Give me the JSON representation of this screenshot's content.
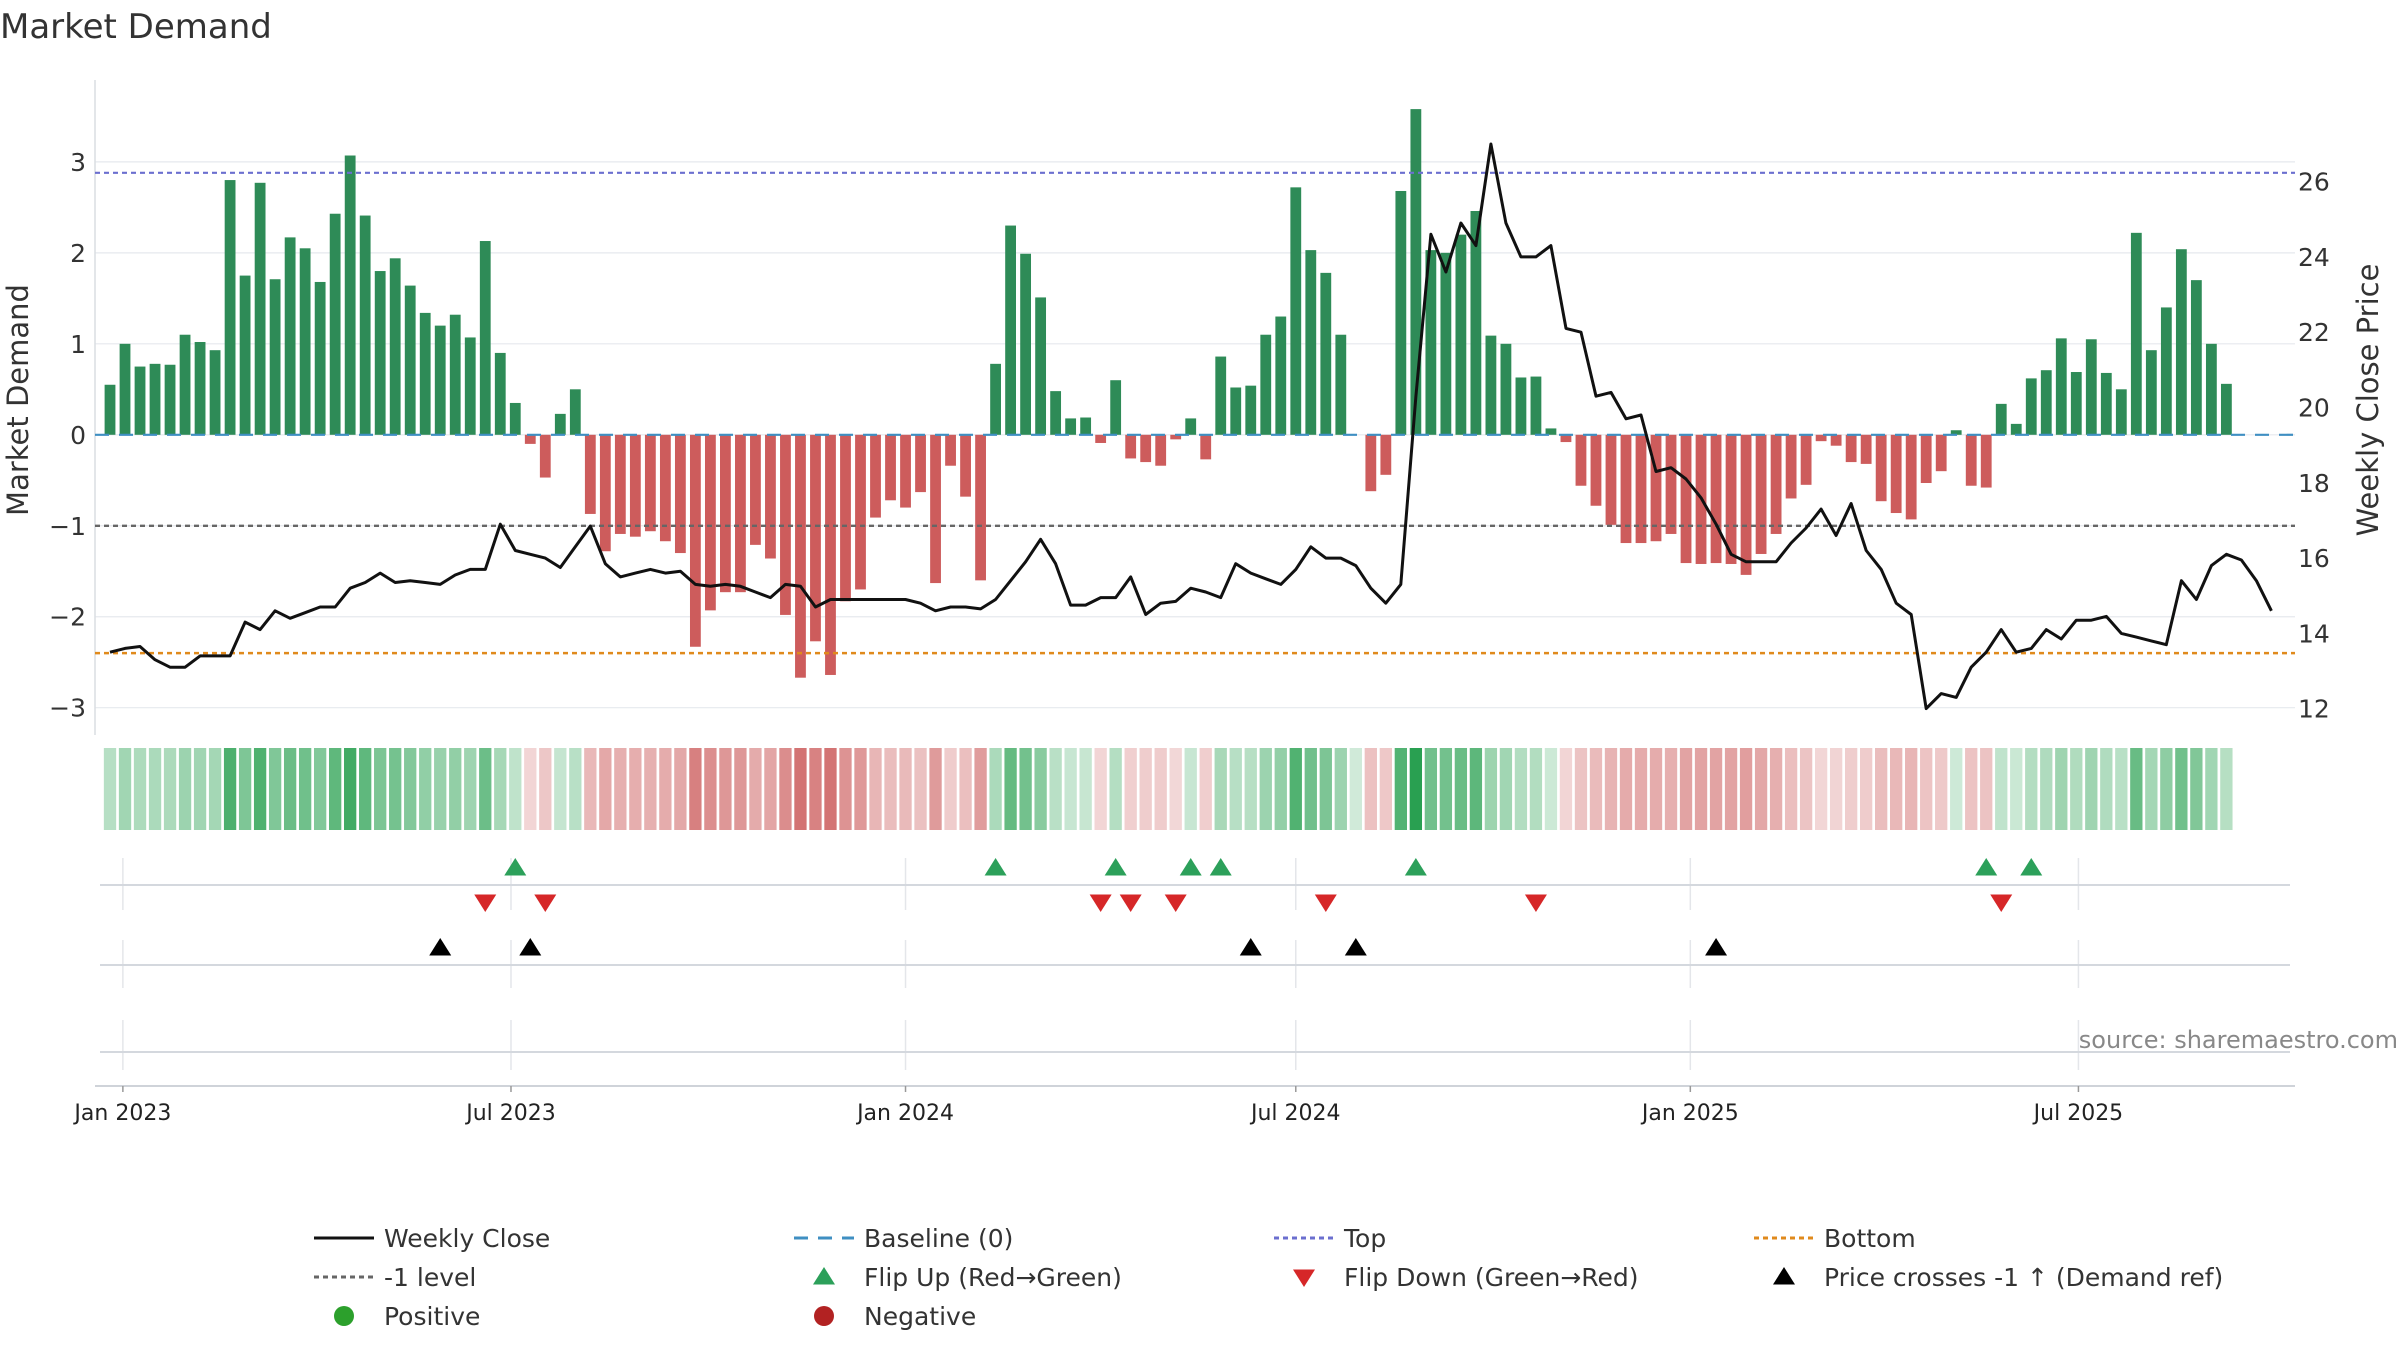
{
  "chart_data": {
    "type": "bar",
    "title": "Market Demand",
    "ylabel": "Market Demand",
    "y2label": "Weekly Close Price",
    "ylim": [
      -3.3,
      3.9
    ],
    "y_ticks": [
      -3,
      -2,
      -1,
      0,
      1,
      2,
      3
    ],
    "y_tick_labels": [
      "−3",
      "−2",
      "−1",
      "0",
      "1",
      "2",
      "3"
    ],
    "y2lim": [
      11.3,
      28.7
    ],
    "y2_ticks": [
      12,
      14,
      16,
      18,
      20,
      22,
      24,
      26
    ],
    "y2_tick_labels": [
      "12",
      "14",
      "16",
      "18",
      "20",
      "22",
      "24",
      "26"
    ],
    "x_start": "2022-12-19",
    "x_end": "2025-10-10",
    "weeks_start": "2022-12-26",
    "x_ticks": [
      {
        "date": "2023-01-01",
        "label": "Jan 2023"
      },
      {
        "date": "2023-07-01",
        "label": "Jul 2023"
      },
      {
        "date": "2024-01-01",
        "label": "Jan 2024"
      },
      {
        "date": "2024-07-01",
        "label": "Jul 2024"
      },
      {
        "date": "2025-01-01",
        "label": "Jan 2025"
      },
      {
        "date": "2025-07-01",
        "label": "Jul 2025"
      }
    ],
    "reference_lines": {
      "top": 2.88,
      "bottom": -2.4,
      "minus_one": -1,
      "baseline": 0
    },
    "series": [
      {
        "name": "Market Demand",
        "values": [
          0.55,
          1.0,
          0.75,
          0.78,
          0.77,
          1.1,
          1.02,
          0.93,
          2.8,
          1.75,
          2.77,
          1.71,
          2.17,
          2.05,
          1.68,
          2.43,
          3.07,
          2.41,
          1.8,
          1.94,
          1.64,
          1.34,
          1.2,
          1.32,
          1.07,
          2.13,
          0.9,
          0.35,
          -0.1,
          -0.47,
          0.23,
          0.5,
          -0.87,
          -1.28,
          -1.09,
          -1.12,
          -1.06,
          -1.17,
          -1.3,
          -2.33,
          -1.93,
          -1.73,
          -1.73,
          -1.21,
          -1.36,
          -1.98,
          -2.67,
          -2.27,
          -2.64,
          -1.83,
          -1.7,
          -0.91,
          -0.72,
          -0.8,
          -0.63,
          -1.63,
          -0.34,
          -0.68,
          -1.6,
          0.78,
          2.3,
          1.99,
          1.51,
          0.48,
          0.18,
          0.19,
          -0.09,
          0.6,
          -0.26,
          -0.3,
          -0.34,
          -0.05,
          0.18,
          -0.27,
          0.86,
          0.52,
          0.54,
          1.1,
          1.3,
          2.72,
          2.03,
          1.78,
          1.1,
          0.0,
          -0.62,
          -0.44,
          2.68,
          3.58,
          2.03,
          2.0,
          2.2,
          2.46,
          1.09,
          1.0,
          0.63,
          0.64,
          0.07,
          -0.08,
          -0.56,
          -0.78,
          -0.99,
          -1.19,
          -1.19,
          -1.17,
          -1.09,
          -1.41,
          -1.42,
          -1.41,
          -1.42,
          -1.54,
          -1.31,
          -1.09,
          -0.7,
          -0.55,
          -0.07,
          -0.12,
          -0.3,
          -0.32,
          -0.73,
          -0.86,
          -0.93,
          -0.53,
          -0.4,
          0.05,
          -0.56,
          -0.58,
          0.34,
          0.12,
          0.62,
          0.71,
          1.06,
          0.69,
          1.05,
          0.68,
          0.5,
          2.22,
          0.93,
          1.4,
          2.04,
          1.7,
          1.0,
          0.56
        ]
      },
      {
        "name": "Weekly Close",
        "values": [
          13.5,
          13.6,
          13.65,
          13.3,
          13.1,
          13.1,
          13.4,
          13.4,
          13.4,
          14.3,
          14.1,
          14.6,
          14.4,
          14.55,
          14.7,
          14.7,
          15.2,
          15.35,
          15.6,
          15.35,
          15.4,
          15.35,
          15.3,
          15.55,
          15.7,
          15.7,
          16.9,
          16.2,
          16.1,
          16.0,
          15.75,
          16.3,
          16.85,
          15.85,
          15.5,
          15.6,
          15.7,
          15.6,
          15.65,
          15.3,
          15.25,
          15.3,
          15.25,
          15.1,
          14.95,
          15.3,
          15.25,
          14.7,
          14.9,
          14.9,
          14.9,
          14.9,
          14.9,
          14.9,
          14.8,
          14.6,
          14.7,
          14.7,
          14.65,
          14.9,
          15.4,
          15.9,
          16.5,
          15.85,
          14.75,
          14.75,
          14.95,
          14.95,
          15.5,
          14.5,
          14.8,
          14.85,
          15.2,
          15.1,
          14.95,
          15.85,
          15.6,
          15.45,
          15.3,
          15.7,
          16.3,
          16.0,
          16.0,
          15.8,
          15.2,
          14.8,
          15.3,
          20.3,
          24.6,
          23.6,
          24.9,
          24.3,
          27.0,
          24.9,
          24.0,
          24.0,
          24.3,
          22.1,
          22.0,
          20.3,
          20.4,
          19.7,
          19.8,
          18.3,
          18.4,
          18.1,
          17.6,
          16.9,
          16.1,
          15.9,
          15.9,
          15.9,
          16.4,
          16.8,
          17.3,
          16.6,
          17.45,
          16.2,
          15.7,
          14.8,
          14.5,
          12.0,
          12.4,
          12.3,
          13.1,
          13.5,
          14.1,
          13.5,
          13.6,
          14.1,
          13.85,
          14.35,
          14.35,
          14.45,
          14.0,
          13.9,
          13.8,
          13.7,
          15.4,
          14.9,
          15.8,
          16.1,
          15.95,
          15.4,
          14.6
        ]
      }
    ],
    "flip_up_weeks": [
      27,
      59,
      67,
      72,
      74,
      87,
      125,
      128
    ],
    "flip_down_weeks": [
      25,
      29,
      66,
      68,
      71,
      81,
      95,
      126
    ],
    "price_cross_weeks": [
      22,
      28,
      76,
      83,
      107
    ]
  },
  "watermark": "source: sharemaestro.com",
  "legend": {
    "items": [
      {
        "label": "Weekly Close",
        "symbol": "line",
        "color": "#111111"
      },
      {
        "label": "Baseline (0)",
        "symbol": "dashed-line",
        "color": "#3f8fc2"
      },
      {
        "label": "Top",
        "symbol": "dotted-line",
        "color": "#6b6fcf"
      },
      {
        "label": "Bottom",
        "symbol": "dotted-line",
        "color": "#e08a1c"
      },
      {
        "label": "-1 level",
        "symbol": "dotted-line",
        "color": "#666666"
      },
      {
        "label": "Flip Up (Red→Green)",
        "symbol": "triangle-up",
        "color": "#2ca05a"
      },
      {
        "label": "Flip Down (Green→Red)",
        "symbol": "triangle-down",
        "color": "#d62728"
      },
      {
        "label": "Price crosses -1 ↑ (Demand ref)",
        "symbol": "triangle-up",
        "color": "#000000"
      },
      {
        "label": "Positive",
        "symbol": "circle",
        "color": "#2ca02c"
      },
      {
        "label": "Negative",
        "symbol": "circle",
        "color": "#b22222"
      }
    ]
  },
  "colors": {
    "positive_bar": "#2e8b57",
    "negative_bar": "#cd5c5c",
    "price_line": "#111111",
    "grid": "#e6e9ee"
  }
}
